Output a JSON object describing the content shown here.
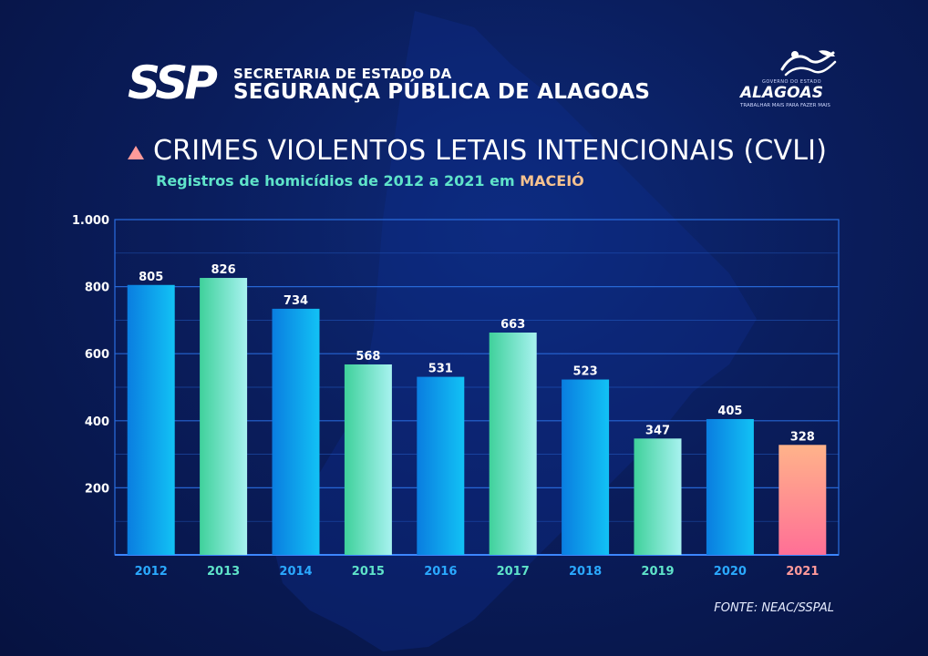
{
  "header": {
    "org_line1": "SECRETARIA DE ESTADO DA",
    "org_line2": "SEGURANÇA PÚBLICA DE ALAGOAS",
    "ssp_logo_text": "SSP",
    "gov_small": "GOVERNO DO ESTADO",
    "gov_name": "ALAGOAS",
    "gov_tagline": "TRABALHAR MAIS PARA FAZER MAIS"
  },
  "title": "CRIMES VIOLENTOS LETAIS INTENCIONAIS (CVLI)",
  "subtitle_prefix": "Registros de homicídios de 2012 a 2021 em",
  "subtitle_city": "MACEIÓ",
  "source": "FONTE: NEAC/SSPAL",
  "colors": {
    "blue_top": "#0a7de0",
    "blue_bottom": "#12c2f5",
    "green_top": "#3fd19b",
    "green_bottom": "#a8f2f0",
    "pink_top": "#ffb38a",
    "pink_bottom": "#ff6f96",
    "grid": "#2a6ee0",
    "accent": "#f6c28f"
  },
  "chart_data": {
    "type": "bar",
    "categories": [
      "2012",
      "2013",
      "2014",
      "2015",
      "2016",
      "2017",
      "2018",
      "2019",
      "2020",
      "2021"
    ],
    "values": [
      805,
      826,
      734,
      568,
      531,
      663,
      523,
      347,
      405,
      328
    ],
    "bar_styles": [
      "blue",
      "green",
      "blue",
      "green",
      "blue",
      "green",
      "blue",
      "green",
      "blue",
      "pink"
    ],
    "ylim": [
      0,
      1000
    ],
    "y_ticks": [
      200,
      400,
      600,
      800,
      1000
    ],
    "y_tick_labels": [
      "200",
      "400",
      "600",
      "800",
      "1.000"
    ],
    "grid": true
  }
}
